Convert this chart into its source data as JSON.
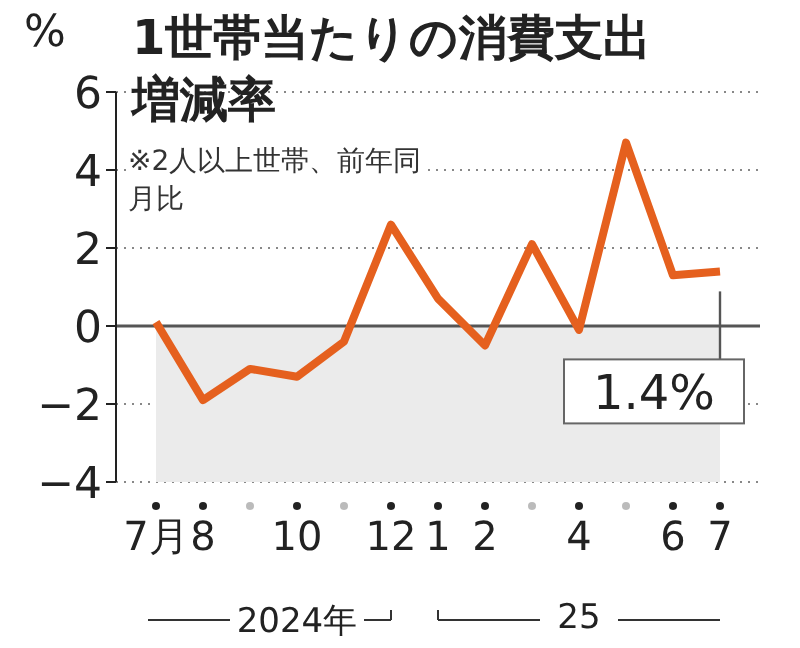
{
  "chart_data": {
    "type": "line",
    "title": "1世帯当たりの消費支出増減率",
    "ylabel": "%",
    "categories": [
      "7月",
      "8",
      null,
      "10",
      null,
      "12",
      "1",
      "2",
      null,
      "4",
      null,
      "6",
      "7"
    ],
    "series": [
      {
        "color": "#e5601e",
        "values": [
          0.1,
          -1.9,
          -1.1,
          -1.3,
          -0.4,
          2.6,
          0.7,
          -0.5,
          2.1,
          -0.1,
          4.7,
          1.3,
          1.4
        ]
      }
    ],
    "ylim": [
      -4,
      6
    ],
    "yticks": [
      -4,
      -2,
      0,
      2,
      4,
      6
    ],
    "grid": "y",
    "marker": "none",
    "bands": [
      {
        "axis": "y",
        "from": -4,
        "to": 0,
        "color": "#ebebeb"
      }
    ],
    "ref_lines": [
      {
        "axis": "y",
        "value": 0,
        "color": "#555555"
      }
    ],
    "annotations": [
      "※2人以上世帯、前年同月比",
      {
        "text": "1.4%",
        "x": "7",
        "y": 1.4
      },
      "2024年",
      "25"
    ]
  }
}
